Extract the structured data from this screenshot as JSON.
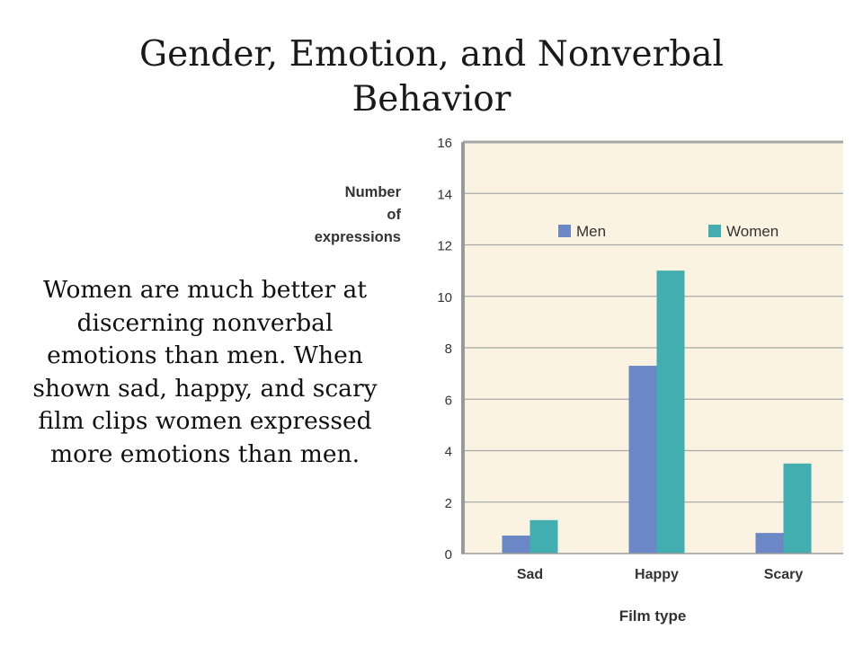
{
  "slide": {
    "title_line1": "Gender, Emotion, and Nonverbal",
    "title_line2": "Behavior",
    "body_text": "Women are much better at discerning nonverbal emotions than men. When shown sad, happy, and scary film clips women expressed more emotions than men."
  },
  "chart_data": {
    "type": "bar",
    "xlabel": "Film type",
    "ylabel_lines": [
      "Number",
      "of",
      "expressions"
    ],
    "categories": [
      "Sad",
      "Happy",
      "Scary"
    ],
    "series": [
      {
        "name": "Men",
        "values": [
          0.7,
          7.3,
          0.8
        ],
        "color": "#6b87c6"
      },
      {
        "name": "Women",
        "values": [
          1.3,
          11,
          3.5
        ],
        "color": "#43aeb0"
      }
    ],
    "ylim": [
      0,
      16
    ],
    "yticks": [
      0,
      2,
      4,
      6,
      8,
      10,
      12,
      14,
      16
    ],
    "grid": true,
    "legend_position": "top-center",
    "plot_background": "#fbf3e1",
    "gridline_color": "#a8a8a8"
  }
}
